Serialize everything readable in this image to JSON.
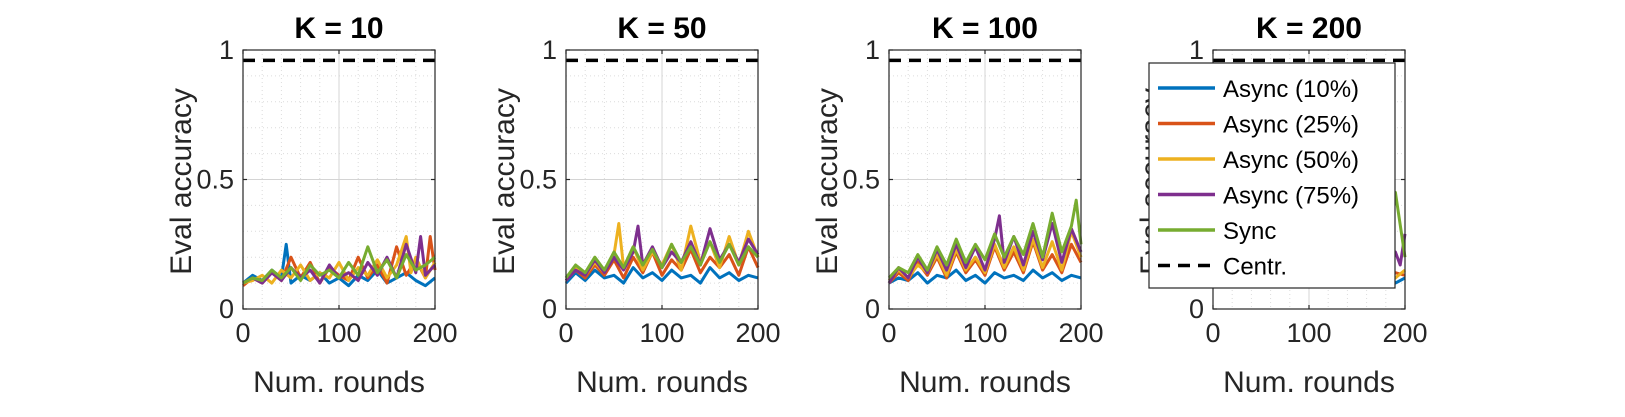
{
  "chart_data": [
    {
      "type": "line",
      "title": "K = 10",
      "xlabel": "Num. rounds",
      "ylabel": "Eval accuracy",
      "xlim": [
        0,
        200
      ],
      "ylim": [
        0,
        1
      ],
      "xticks": [
        "0",
        "100",
        "200"
      ],
      "yticks": [
        "0",
        "0.5",
        "1"
      ],
      "grid": true,
      "series": [
        {
          "name": "Async (10%)",
          "color": "#0072BD",
          "x": [
            0,
            10,
            20,
            30,
            40,
            45,
            50,
            60,
            70,
            80,
            90,
            100,
            110,
            120,
            130,
            140,
            150,
            160,
            170,
            180,
            190,
            200
          ],
          "y": [
            0.1,
            0.13,
            0.11,
            0.15,
            0.12,
            0.25,
            0.1,
            0.13,
            0.11,
            0.14,
            0.1,
            0.12,
            0.09,
            0.13,
            0.11,
            0.15,
            0.1,
            0.12,
            0.14,
            0.11,
            0.09,
            0.12
          ]
        },
        {
          "name": "Async (25%)",
          "color": "#D95319",
          "x": [
            0,
            10,
            20,
            30,
            40,
            50,
            60,
            70,
            80,
            90,
            100,
            110,
            120,
            130,
            140,
            150,
            160,
            170,
            180,
            190,
            195,
            200
          ],
          "y": [
            0.09,
            0.12,
            0.1,
            0.14,
            0.11,
            0.2,
            0.12,
            0.18,
            0.1,
            0.16,
            0.13,
            0.11,
            0.2,
            0.12,
            0.17,
            0.1,
            0.24,
            0.13,
            0.19,
            0.12,
            0.28,
            0.15
          ]
        },
        {
          "name": "Async (50%)",
          "color": "#EDB120",
          "x": [
            0,
            10,
            20,
            30,
            40,
            50,
            60,
            70,
            80,
            90,
            100,
            110,
            120,
            130,
            140,
            150,
            160,
            170,
            175,
            180,
            190,
            200
          ],
          "y": [
            0.1,
            0.11,
            0.13,
            0.1,
            0.15,
            0.12,
            0.17,
            0.11,
            0.14,
            0.12,
            0.18,
            0.11,
            0.16,
            0.13,
            0.19,
            0.12,
            0.17,
            0.28,
            0.14,
            0.2,
            0.12,
            0.18
          ]
        },
        {
          "name": "Async (75%)",
          "color": "#7E2F8E",
          "x": [
            0,
            10,
            20,
            30,
            40,
            50,
            60,
            70,
            80,
            90,
            100,
            110,
            120,
            130,
            140,
            150,
            160,
            170,
            180,
            185,
            190,
            200
          ],
          "y": [
            0.1,
            0.12,
            0.1,
            0.14,
            0.11,
            0.16,
            0.12,
            0.15,
            0.1,
            0.17,
            0.12,
            0.14,
            0.11,
            0.18,
            0.13,
            0.2,
            0.12,
            0.25,
            0.14,
            0.28,
            0.13,
            0.17
          ]
        },
        {
          "name": "Sync",
          "color": "#77AC30",
          "x": [
            0,
            10,
            20,
            30,
            40,
            50,
            60,
            70,
            80,
            90,
            100,
            110,
            120,
            130,
            140,
            150,
            160,
            170,
            180,
            190,
            200
          ],
          "y": [
            0.1,
            0.12,
            0.11,
            0.15,
            0.12,
            0.16,
            0.11,
            0.17,
            0.13,
            0.15,
            0.12,
            0.18,
            0.13,
            0.24,
            0.14,
            0.19,
            0.12,
            0.21,
            0.15,
            0.17,
            0.2
          ]
        }
      ],
      "reference_lines": [
        {
          "name": "Centr.",
          "y": 0.96,
          "color": "#000000",
          "style": "dashed"
        }
      ]
    },
    {
      "type": "line",
      "title": "K = 50",
      "xlabel": "Num. rounds",
      "ylabel": "Eval accuracy",
      "xlim": [
        0,
        200
      ],
      "ylim": [
        0,
        1
      ],
      "xticks": [
        "0",
        "100",
        "200"
      ],
      "yticks": [
        "0",
        "0.5",
        "1"
      ],
      "grid": true,
      "series": [
        {
          "name": "Async (10%)",
          "color": "#0072BD",
          "x": [
            0,
            10,
            20,
            30,
            40,
            50,
            60,
            70,
            80,
            90,
            100,
            110,
            120,
            130,
            140,
            150,
            160,
            170,
            180,
            190,
            200
          ],
          "y": [
            0.1,
            0.14,
            0.11,
            0.15,
            0.12,
            0.13,
            0.1,
            0.16,
            0.12,
            0.14,
            0.11,
            0.15,
            0.12,
            0.13,
            0.1,
            0.16,
            0.12,
            0.14,
            0.11,
            0.13,
            0.12
          ]
        },
        {
          "name": "Async (25%)",
          "color": "#D95319",
          "x": [
            0,
            10,
            20,
            30,
            40,
            50,
            60,
            70,
            80,
            90,
            100,
            110,
            120,
            130,
            140,
            150,
            160,
            170,
            180,
            190,
            200
          ],
          "y": [
            0.11,
            0.15,
            0.12,
            0.17,
            0.13,
            0.19,
            0.12,
            0.2,
            0.14,
            0.22,
            0.13,
            0.19,
            0.15,
            0.23,
            0.14,
            0.2,
            0.16,
            0.21,
            0.13,
            0.24,
            0.16
          ]
        },
        {
          "name": "Async (50%)",
          "color": "#EDB120",
          "x": [
            0,
            10,
            20,
            30,
            40,
            50,
            55,
            60,
            70,
            80,
            90,
            100,
            110,
            120,
            130,
            140,
            150,
            160,
            170,
            180,
            190,
            200
          ],
          "y": [
            0.12,
            0.16,
            0.13,
            0.18,
            0.14,
            0.21,
            0.33,
            0.16,
            0.24,
            0.15,
            0.22,
            0.17,
            0.25,
            0.15,
            0.32,
            0.18,
            0.26,
            0.16,
            0.28,
            0.17,
            0.3,
            0.2
          ]
        },
        {
          "name": "Async (75%)",
          "color": "#7E2F8E",
          "x": [
            0,
            10,
            20,
            30,
            40,
            50,
            60,
            70,
            75,
            80,
            90,
            100,
            110,
            120,
            130,
            140,
            150,
            160,
            170,
            180,
            190,
            200
          ],
          "y": [
            0.11,
            0.15,
            0.13,
            0.19,
            0.14,
            0.2,
            0.15,
            0.22,
            0.32,
            0.17,
            0.24,
            0.16,
            0.22,
            0.18,
            0.26,
            0.17,
            0.31,
            0.19,
            0.25,
            0.18,
            0.27,
            0.21
          ]
        },
        {
          "name": "Sync",
          "color": "#77AC30",
          "x": [
            0,
            10,
            20,
            30,
            40,
            50,
            60,
            70,
            80,
            90,
            100,
            110,
            120,
            130,
            140,
            150,
            160,
            170,
            180,
            190,
            200
          ],
          "y": [
            0.12,
            0.17,
            0.14,
            0.2,
            0.15,
            0.22,
            0.16,
            0.24,
            0.17,
            0.23,
            0.16,
            0.25,
            0.18,
            0.24,
            0.17,
            0.26,
            0.18,
            0.25,
            0.17,
            0.24,
            0.2
          ]
        }
      ],
      "reference_lines": [
        {
          "name": "Centr.",
          "y": 0.96,
          "color": "#000000",
          "style": "dashed"
        }
      ]
    },
    {
      "type": "line",
      "title": "K = 100",
      "xlabel": "Num. rounds",
      "ylabel": "Eval accuracy",
      "xlim": [
        0,
        200
      ],
      "ylim": [
        0,
        1
      ],
      "xticks": [
        "0",
        "100",
        "200"
      ],
      "yticks": [
        "0",
        "0.5",
        "1"
      ],
      "grid": true,
      "series": [
        {
          "name": "Async (10%)",
          "color": "#0072BD",
          "x": [
            0,
            10,
            20,
            30,
            40,
            50,
            60,
            70,
            80,
            90,
            100,
            110,
            120,
            130,
            140,
            150,
            160,
            170,
            180,
            190,
            200
          ],
          "y": [
            0.1,
            0.12,
            0.11,
            0.14,
            0.1,
            0.13,
            0.12,
            0.15,
            0.11,
            0.13,
            0.1,
            0.14,
            0.12,
            0.13,
            0.11,
            0.15,
            0.12,
            0.14,
            0.11,
            0.13,
            0.12
          ]
        },
        {
          "name": "Async (25%)",
          "color": "#D95319",
          "x": [
            0,
            10,
            20,
            30,
            40,
            50,
            60,
            70,
            80,
            90,
            100,
            110,
            120,
            130,
            140,
            150,
            160,
            170,
            180,
            190,
            200
          ],
          "y": [
            0.1,
            0.14,
            0.11,
            0.18,
            0.13,
            0.2,
            0.12,
            0.22,
            0.14,
            0.19,
            0.13,
            0.24,
            0.15,
            0.22,
            0.14,
            0.26,
            0.15,
            0.21,
            0.14,
            0.25,
            0.18
          ]
        },
        {
          "name": "Async (50%)",
          "color": "#EDB120",
          "x": [
            0,
            10,
            20,
            30,
            40,
            50,
            60,
            70,
            80,
            90,
            100,
            110,
            120,
            130,
            140,
            150,
            160,
            170,
            180,
            190,
            200
          ],
          "y": [
            0.11,
            0.15,
            0.12,
            0.17,
            0.14,
            0.21,
            0.13,
            0.23,
            0.15,
            0.2,
            0.14,
            0.25,
            0.16,
            0.24,
            0.15,
            0.27,
            0.16,
            0.26,
            0.15,
            0.3,
            0.2
          ]
        },
        {
          "name": "Async (75%)",
          "color": "#7E2F8E",
          "x": [
            0,
            10,
            20,
            30,
            40,
            50,
            60,
            70,
            80,
            90,
            100,
            110,
            115,
            120,
            130,
            140,
            150,
            160,
            170,
            180,
            190,
            200
          ],
          "y": [
            0.1,
            0.16,
            0.12,
            0.2,
            0.14,
            0.23,
            0.15,
            0.25,
            0.16,
            0.24,
            0.15,
            0.27,
            0.36,
            0.18,
            0.28,
            0.17,
            0.3,
            0.19,
            0.33,
            0.18,
            0.31,
            0.22
          ]
        },
        {
          "name": "Sync",
          "color": "#77AC30",
          "x": [
            0,
            10,
            20,
            30,
            40,
            50,
            60,
            70,
            80,
            90,
            100,
            110,
            120,
            130,
            140,
            150,
            160,
            170,
            180,
            190,
            195,
            200
          ],
          "y": [
            0.12,
            0.16,
            0.14,
            0.21,
            0.15,
            0.24,
            0.17,
            0.27,
            0.18,
            0.25,
            0.19,
            0.29,
            0.2,
            0.28,
            0.21,
            0.33,
            0.2,
            0.37,
            0.22,
            0.32,
            0.42,
            0.25
          ]
        }
      ],
      "reference_lines": [
        {
          "name": "Centr.",
          "y": 0.96,
          "color": "#000000",
          "style": "dashed"
        }
      ]
    },
    {
      "type": "line",
      "title": "K = 200",
      "xlabel": "Num. rounds",
      "ylabel": "Eval accuracy",
      "xlim": [
        0,
        200
      ],
      "ylim": [
        0,
        1
      ],
      "xticks": [
        "0",
        "100",
        "200"
      ],
      "yticks": [
        "0",
        "0.5",
        "1"
      ],
      "grid": true,
      "series": [
        {
          "name": "Async (10%)",
          "color": "#0072BD",
          "x": [
            0,
            10,
            20,
            40,
            60,
            80,
            100,
            120,
            140,
            160,
            180,
            190,
            200
          ],
          "y": [
            0.1,
            0.12,
            0.09,
            0.11,
            0.1,
            0.12,
            0.11,
            0.1,
            0.12,
            0.11,
            0.13,
            0.1,
            0.12
          ]
        },
        {
          "name": "Async (25%)",
          "color": "#D95319",
          "x": [
            0,
            10,
            20,
            40,
            60,
            80,
            100,
            120,
            140,
            160,
            180,
            190,
            200
          ],
          "y": [
            0.11,
            0.09,
            0.12,
            0.1,
            0.11,
            0.13,
            0.1,
            0.12,
            0.11,
            0.13,
            0.12,
            0.14,
            0.13
          ]
        },
        {
          "name": "Async (50%)",
          "color": "#EDB120",
          "x": [
            0,
            10,
            20,
            40,
            60,
            80,
            100,
            120,
            140,
            160,
            180,
            190,
            200
          ],
          "y": [
            0.1,
            0.12,
            0.1,
            0.13,
            0.09,
            0.11,
            0.12,
            0.1,
            0.13,
            0.11,
            0.14,
            0.12,
            0.15
          ]
        },
        {
          "name": "Async (75%)",
          "color": "#7E2F8E",
          "x": [
            0,
            20,
            40,
            60,
            80,
            100,
            120,
            140,
            160,
            180,
            190,
            195,
            200
          ],
          "y": [
            0.1,
            0.11,
            0.12,
            0.1,
            0.12,
            0.11,
            0.13,
            0.12,
            0.14,
            0.15,
            0.22,
            0.17,
            0.29
          ]
        },
        {
          "name": "Sync",
          "color": "#77AC30",
          "x": [
            0,
            20,
            40,
            60,
            80,
            100,
            120,
            140,
            160,
            180,
            185,
            190,
            200
          ],
          "y": [
            0.11,
            0.12,
            0.1,
            0.13,
            0.11,
            0.12,
            0.13,
            0.12,
            0.15,
            0.18,
            0.26,
            0.45,
            0.2
          ]
        }
      ],
      "reference_lines": [
        {
          "name": "Centr.",
          "y": 0.96,
          "color": "#000000",
          "style": "dashed"
        }
      ]
    }
  ],
  "legend": {
    "placement": "overlapping K = 200 panel, left",
    "entries": [
      {
        "label": "Async (10%)",
        "color": "#0072BD",
        "style": "solid"
      },
      {
        "label": "Async (25%)",
        "color": "#D95319",
        "style": "solid"
      },
      {
        "label": "Async (50%)",
        "color": "#EDB120",
        "style": "solid"
      },
      {
        "label": "Async (75%)",
        "color": "#7E2F8E",
        "style": "solid"
      },
      {
        "label": "Sync",
        "color": "#77AC30",
        "style": "solid"
      },
      {
        "label": "Centr.",
        "color": "#000000",
        "style": "dashed"
      }
    ]
  }
}
